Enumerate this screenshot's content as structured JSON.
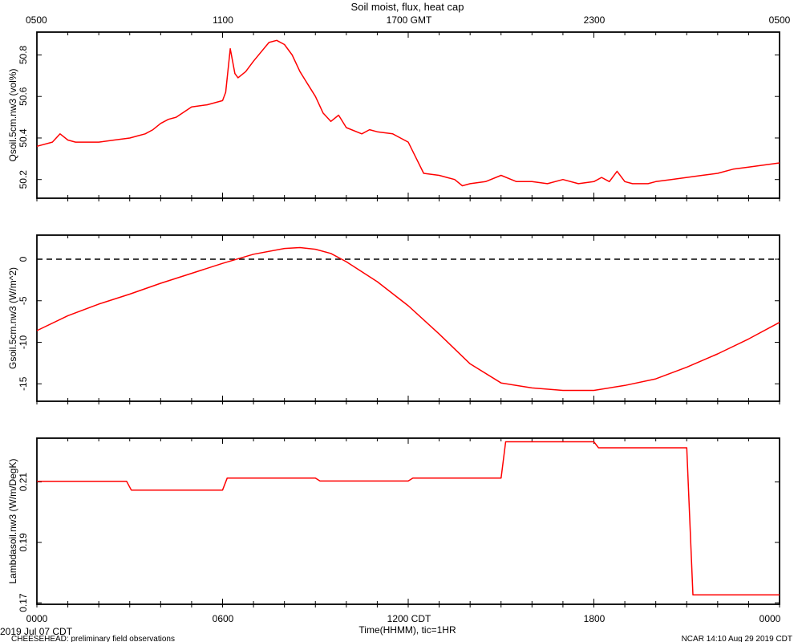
{
  "figure": {
    "title": "Soil moist, flux, heat cap",
    "footer_left": "CHEESEHEAD: preliminary field observations",
    "footer_right": "NCAR 14:10 Aug 29 2019 CDT",
    "date_label": "2019 Jul 07 CDT",
    "xlabel": "Time(HHMM), tic=1HR",
    "top_axis_ticks": [
      "0500",
      "1100",
      "1700 GMT",
      "2300",
      "0500"
    ],
    "bottom_axis_ticks": [
      "0000",
      "0600",
      "1200 CDT",
      "1800",
      "0000"
    ]
  },
  "chart_data": [
    {
      "type": "line",
      "ylabel": "Qsoil.5cm.nw3 (vol%)",
      "color": "#ff0000",
      "ylim": [
        50.11,
        50.91
      ],
      "yticks": [
        "50.2",
        "50.4",
        "50.6",
        "50.8"
      ],
      "x_hours": [
        0,
        0.5,
        0.75,
        1.0,
        1.25,
        1.5,
        1.75,
        2.0,
        2.5,
        3.0,
        3.25,
        3.5,
        3.75,
        4.0,
        4.25,
        4.5,
        5.0,
        5.5,
        6.0,
        6.1,
        6.25,
        6.4,
        6.5,
        6.75,
        7.0,
        7.5,
        7.75,
        8.0,
        8.25,
        8.5,
        8.75,
        9.0,
        9.25,
        9.5,
        9.75,
        10.0,
        10.5,
        10.75,
        11.0,
        11.5,
        11.75,
        12.0,
        12.5,
        13.0,
        13.25,
        13.5,
        13.75,
        14.0,
        14.5,
        15.0,
        15.5,
        15.75,
        16.0,
        16.5,
        17.0,
        17.5,
        18.0,
        18.25,
        18.5,
        18.75,
        19.0,
        19.25,
        19.5,
        19.75,
        20.0,
        20.5,
        21.0,
        21.5,
        22.0,
        22.5,
        23.0,
        23.5,
        24.0
      ],
      "values": [
        50.36,
        50.38,
        50.42,
        50.39,
        50.38,
        50.38,
        50.38,
        50.38,
        50.39,
        50.4,
        50.41,
        50.42,
        50.44,
        50.47,
        50.49,
        50.5,
        50.55,
        50.56,
        50.58,
        50.62,
        50.83,
        50.71,
        50.69,
        50.72,
        50.77,
        50.86,
        50.87,
        50.85,
        50.8,
        50.72,
        50.66,
        50.6,
        50.52,
        50.48,
        50.51,
        50.45,
        50.42,
        50.44,
        50.43,
        50.42,
        50.4,
        50.38,
        50.23,
        50.22,
        50.21,
        50.2,
        50.17,
        50.18,
        50.19,
        50.22,
        50.19,
        50.19,
        50.19,
        50.18,
        50.2,
        50.18,
        50.19,
        50.21,
        50.19,
        50.24,
        50.19,
        50.18,
        50.18,
        50.18,
        50.19,
        50.2,
        50.21,
        50.22,
        50.23,
        50.25,
        50.26,
        50.27,
        50.28
      ]
    },
    {
      "type": "line",
      "ylabel": "Gsoil.5cm.nw3 (W/m^2)",
      "color": "#ff0000",
      "ylim": [
        -17.1,
        2.9
      ],
      "yticks": [
        "0",
        "-5",
        "-10",
        "-15"
      ],
      "reference_line": {
        "y": 0,
        "style": "dashed"
      },
      "x_hours": [
        0,
        1,
        2,
        3,
        4,
        5,
        6,
        7,
        8,
        8.5,
        9,
        9.5,
        10,
        11,
        12,
        13,
        14,
        15,
        16,
        17,
        18,
        19,
        20,
        21,
        22,
        23,
        24
      ],
      "values": [
        -8.6,
        -6.8,
        -5.4,
        -4.2,
        -2.9,
        -1.7,
        -0.5,
        0.6,
        1.3,
        1.4,
        1.2,
        0.7,
        -0.3,
        -2.7,
        -5.6,
        -9.0,
        -12.6,
        -14.9,
        -15.5,
        -15.8,
        -15.8,
        -15.2,
        -14.4,
        -13.0,
        -11.4,
        -9.6,
        -7.6
      ]
    },
    {
      "type": "line",
      "ylabel": "Lambdasoil.nw3 (W/m/DegK)",
      "color": "#ff0000",
      "ylim": [
        0.1695,
        0.2245
      ],
      "yticks": [
        "0.21",
        "0.19",
        "0.17"
      ],
      "x_hours": [
        0,
        2.9,
        3.05,
        6.0,
        6.15,
        9.0,
        9.15,
        12.0,
        12.15,
        15.0,
        15.15,
        18.0,
        18.15,
        21.0,
        21.2,
        24.0
      ],
      "values": [
        0.2102,
        0.2102,
        0.2073,
        0.2073,
        0.2113,
        0.2113,
        0.2103,
        0.2103,
        0.2113,
        0.2113,
        0.2233,
        0.2233,
        0.2213,
        0.2213,
        0.1726,
        0.1726
      ]
    }
  ]
}
